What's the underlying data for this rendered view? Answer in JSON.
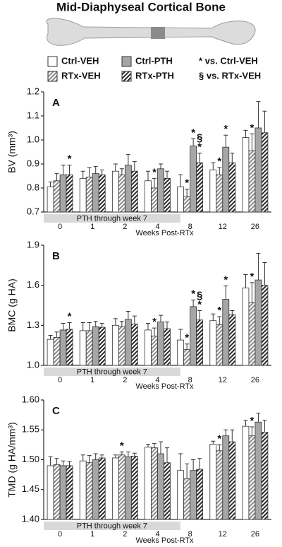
{
  "title": "Mid-Diaphyseal Cortical Bone",
  "legend_notes": [
    "* vs. Ctrl-VEH",
    "§ vs. RTx-VEH"
  ],
  "chart_data": [
    {
      "type": "bar",
      "label": "A",
      "ylabel": "BV (mm³)",
      "xlabel": "Weeks Post-RTx",
      "shaded_label": "PTH through week 7",
      "categories": [
        "0",
        "1",
        "2",
        "4",
        "8",
        "12",
        "26"
      ],
      "ylim": [
        0.7,
        1.2
      ],
      "yticks": [
        0.7,
        0.8,
        0.9,
        {
          "value": 1.0,
          "label": "1.0"
        },
        1.1,
        1.2
      ],
      "series": [
        {
          "name": "Ctrl-VEH",
          "color": "#ffffff",
          "hatch": false,
          "values": [
            0.805,
            0.84,
            0.87,
            0.83,
            0.805,
            0.875,
            1.01
          ],
          "errors": [
            0.02,
            0.03,
            0.03,
            0.04,
            0.05,
            0.03,
            0.03
          ],
          "markers": [
            null,
            null,
            null,
            null,
            null,
            null,
            null
          ]
        },
        {
          "name": "RTx-VEH",
          "color": "#8a8a8a",
          "hatch": true,
          "values": [
            0.83,
            0.845,
            0.855,
            0.8,
            0.765,
            0.855,
            0.955
          ],
          "errors": [
            0.03,
            0.04,
            0.025,
            0.04,
            0.03,
            0.03,
            0.07
          ],
          "markers": [
            null,
            null,
            null,
            [
              "*"
            ],
            [
              "*"
            ],
            [
              "*"
            ],
            [
              "*"
            ]
          ]
        },
        {
          "name": "Ctrl-PTH",
          "color": "#a6a6a6",
          "hatch": false,
          "values": [
            0.855,
            0.86,
            0.895,
            0.88,
            0.975,
            0.97,
            1.05
          ],
          "errors": [
            0.04,
            0.03,
            0.045,
            0.02,
            0.03,
            0.05,
            0.11
          ],
          "markers": [
            null,
            null,
            null,
            null,
            [
              "*"
            ],
            [
              "*"
            ],
            null
          ]
        },
        {
          "name": "RTx-PTH",
          "color": "#2a2a2a",
          "hatch": true,
          "values": [
            0.855,
            0.855,
            0.87,
            0.84,
            0.905,
            0.905,
            1.03
          ],
          "errors": [
            0.04,
            0.02,
            0.04,
            0.03,
            0.04,
            0.04,
            0.09
          ],
          "markers": [
            [
              "*"
            ],
            null,
            null,
            null,
            [
              "§",
              "*"
            ],
            null,
            null
          ]
        }
      ]
    },
    {
      "type": "bar",
      "label": "B",
      "ylabel": "BMC (g HA)",
      "xlabel": "Weeks Post-RTx",
      "shaded_label": "PTH through week 7",
      "categories": [
        "0",
        "1",
        "2",
        "4",
        "8",
        "12",
        "26"
      ],
      "ylim": [
        1.0,
        1.9
      ],
      "yticks": [
        {
          "value": 1.0,
          "label": "1.0"
        },
        1.3,
        1.6,
        1.9
      ],
      "series": [
        {
          "name": "Ctrl-VEH",
          "color": "#ffffff",
          "hatch": false,
          "values": [
            1.195,
            1.26,
            1.3,
            1.265,
            1.19,
            1.335,
            1.58
          ],
          "errors": [
            0.03,
            0.06,
            0.05,
            0.05,
            0.08,
            0.05,
            0.1
          ],
          "markers": [
            null,
            null,
            null,
            null,
            null,
            null,
            null
          ]
        },
        {
          "name": "RTx-VEH",
          "color": "#8a8a8a",
          "hatch": true,
          "values": [
            1.21,
            1.26,
            1.29,
            1.22,
            1.12,
            1.305,
            1.47
          ],
          "errors": [
            0.04,
            0.06,
            0.04,
            0.06,
            0.04,
            0.06,
            0.15
          ],
          "markers": [
            null,
            null,
            null,
            [
              "*"
            ],
            [
              "*"
            ],
            [
              "*"
            ],
            [
              "*"
            ]
          ]
        },
        {
          "name": "Ctrl-PTH",
          "color": "#a6a6a6",
          "hatch": false,
          "values": [
            1.265,
            1.29,
            1.345,
            1.325,
            1.44,
            1.495,
            1.64
          ],
          "errors": [
            0.05,
            0.04,
            0.06,
            0.05,
            0.05,
            0.1,
            0.2
          ],
          "markers": [
            null,
            null,
            null,
            null,
            [
              "*"
            ],
            [
              "*"
            ],
            null
          ]
        },
        {
          "name": "RTx-PTH",
          "color": "#2a2a2a",
          "hatch": true,
          "values": [
            1.27,
            1.285,
            1.31,
            1.275,
            1.34,
            1.38,
            1.6
          ],
          "errors": [
            0.05,
            0.03,
            0.06,
            0.05,
            0.07,
            0.03,
            0.17
          ],
          "markers": [
            [
              "*"
            ],
            null,
            null,
            null,
            [
              "§",
              "*"
            ],
            null,
            null
          ]
        }
      ]
    },
    {
      "type": "bar",
      "label": "C",
      "ylabel": "TMD (g HA/mm³)",
      "xlabel": "Weeks Post-RTx",
      "shaded_label": "PTH through week 7",
      "categories": [
        "0",
        "1",
        "2",
        "4",
        "8",
        "12",
        "26"
      ],
      "ylim": [
        1.4,
        1.6
      ],
      "yticks": [
        {
          "value": 1.4,
          "label": "1.40"
        },
        1.45,
        {
          "value": 1.5,
          "label": "1.50"
        },
        1.55,
        {
          "value": 1.6,
          "label": "1.60"
        }
      ],
      "series": [
        {
          "name": "Ctrl-VEH",
          "color": "#ffffff",
          "hatch": false,
          "values": [
            1.49,
            1.498,
            1.503,
            1.521,
            1.482,
            1.526,
            1.556
          ],
          "errors": [
            0.015,
            0.01,
            0.005,
            0.005,
            0.028,
            0.005,
            0.01
          ],
          "markers": [
            null,
            null,
            null,
            null,
            null,
            null,
            null
          ]
        },
        {
          "name": "RTx-VEH",
          "color": "#8a8a8a",
          "hatch": true,
          "values": [
            1.492,
            1.495,
            1.508,
            1.52,
            1.468,
            1.515,
            1.54
          ],
          "errors": [
            0.01,
            0.012,
            0.005,
            0.007,
            0.025,
            0.01,
            0.015
          ],
          "markers": [
            null,
            null,
            [
              "*"
            ],
            null,
            null,
            [
              "*"
            ],
            [
              "*"
            ]
          ]
        },
        {
          "name": "Ctrl-PTH",
          "color": "#a6a6a6",
          "hatch": false,
          "values": [
            1.49,
            1.5,
            1.505,
            1.51,
            1.482,
            1.54,
            1.563
          ],
          "errors": [
            0.008,
            0.01,
            0.008,
            0.02,
            0.018,
            0.01,
            0.015
          ],
          "markers": [
            null,
            null,
            null,
            null,
            null,
            null,
            null
          ]
        },
        {
          "name": "RTx-PTH",
          "color": "#2a2a2a",
          "hatch": true,
          "values": [
            1.49,
            1.503,
            1.506,
            1.495,
            1.484,
            1.53,
            1.546
          ],
          "errors": [
            0.007,
            0.005,
            0.005,
            0.025,
            0.018,
            0.02,
            0.02
          ],
          "markers": [
            null,
            null,
            null,
            null,
            null,
            null,
            null
          ]
        }
      ]
    }
  ]
}
